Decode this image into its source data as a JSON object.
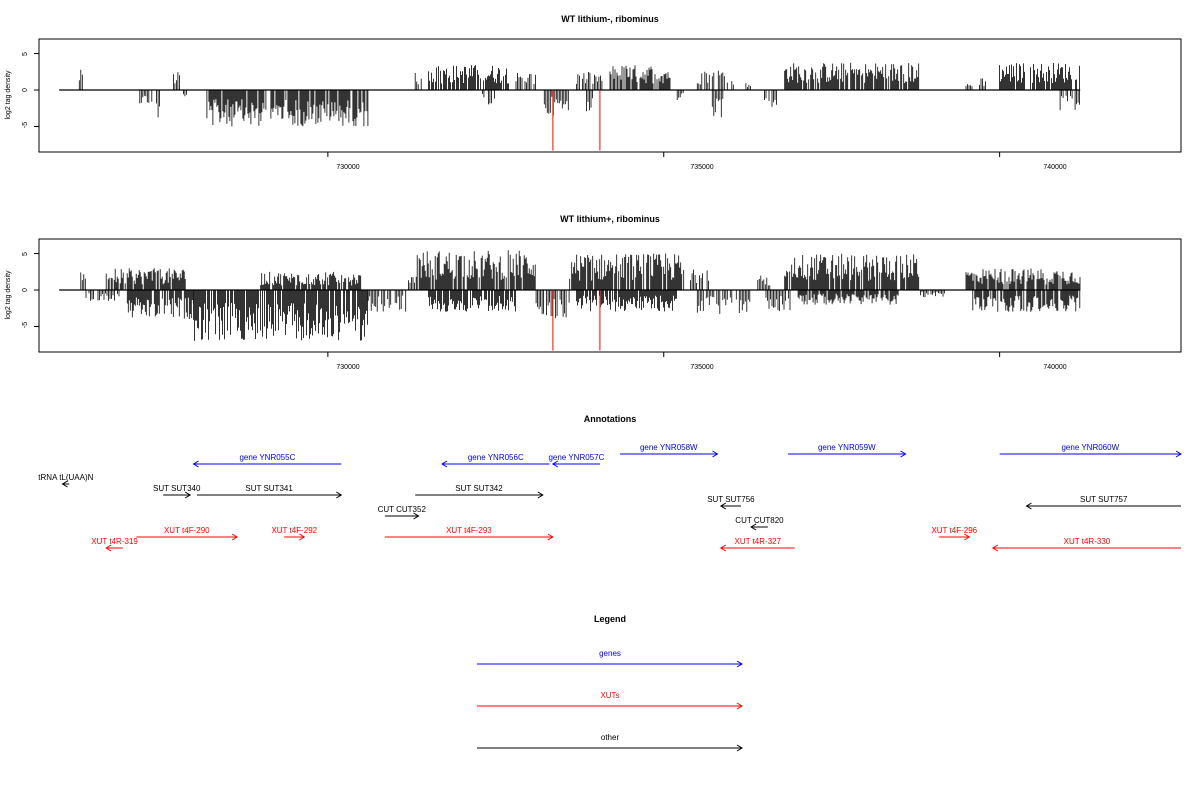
{
  "colors": {
    "gene": "#0000ff",
    "xut": "#ff0000",
    "other": "#000000",
    "marker": "#ff0000",
    "bar": "#000000"
  },
  "chart_data": [
    {
      "type": "bar",
      "title": "WT lithium-, ribominus",
      "ylabel": "log2 tag density",
      "xticks": [
        730000,
        735000,
        740000
      ],
      "xtick_labels": [
        "730000",
        "735000",
        "740000"
      ],
      "yticks": [
        -5,
        0,
        5
      ],
      "ytick_labels": [
        "-5",
        "0",
        "5"
      ],
      "xlim": [
        725700,
        742700
      ],
      "ylim": [
        -8.5,
        7
      ],
      "data_range": [
        726000,
        741200
      ],
      "red_markers": [
        733350,
        734050
      ],
      "blocks": [
        [
          726300,
          726350,
          1,
          2.8
        ],
        [
          727200,
          727400,
          -1,
          2
        ],
        [
          727450,
          727500,
          -1,
          4
        ],
        [
          727700,
          727800,
          1,
          2.5
        ],
        [
          727850,
          727900,
          -1,
          1
        ],
        [
          728200,
          730600,
          -1,
          5
        ],
        [
          731300,
          731400,
          1,
          2.8
        ],
        [
          731500,
          732700,
          1,
          3.5
        ],
        [
          732300,
          732500,
          -1,
          2
        ],
        [
          732800,
          733100,
          1,
          2.5
        ],
        [
          733200,
          733600,
          -1,
          3.5
        ],
        [
          733700,
          734100,
          1,
          2.5
        ],
        [
          733850,
          733950,
          -1,
          3
        ],
        [
          734200,
          735100,
          1,
          3.5
        ],
        [
          735200,
          735300,
          -1,
          1.5
        ],
        [
          735500,
          736100,
          1,
          3
        ],
        [
          735700,
          735900,
          -1,
          4
        ],
        [
          736200,
          736300,
          1,
          1
        ],
        [
          736500,
          736700,
          -1,
          2.5
        ],
        [
          736800,
          738800,
          1,
          3.8
        ],
        [
          739500,
          739600,
          1,
          1
        ],
        [
          739700,
          739800,
          1,
          2
        ],
        [
          740000,
          741200,
          1,
          3.8
        ],
        [
          740900,
          741200,
          -1,
          3
        ]
      ]
    },
    {
      "type": "bar",
      "title": "WT lithium+, ribominus",
      "ylabel": "log2 tag density",
      "xticks": [
        730000,
        735000,
        740000
      ],
      "xtick_labels": [
        "730000",
        "735000",
        "740000"
      ],
      "yticks": [
        -5,
        0,
        5
      ],
      "ytick_labels": [
        "-5",
        "0",
        "5"
      ],
      "xlim": [
        725700,
        742700
      ],
      "ylim": [
        -8.5,
        7
      ],
      "data_range": [
        726000,
        741200
      ],
      "red_markers": [
        733350,
        734050
      ],
      "blocks": [
        [
          726300,
          726400,
          1,
          4
        ],
        [
          726400,
          726900,
          -1,
          1.5
        ],
        [
          726700,
          727900,
          1,
          3
        ],
        [
          727000,
          728000,
          -1,
          4
        ],
        [
          728000,
          730600,
          -1,
          7
        ],
        [
          729000,
          730500,
          1,
          2.5
        ],
        [
          730600,
          731200,
          -1,
          3
        ],
        [
          731200,
          731300,
          1,
          2
        ],
        [
          731300,
          733100,
          1,
          5.5
        ],
        [
          731500,
          732800,
          -1,
          3
        ],
        [
          733100,
          733600,
          -1,
          4
        ],
        [
          733600,
          735300,
          1,
          5
        ],
        [
          733700,
          735200,
          -1,
          3
        ],
        [
          735400,
          735700,
          1,
          3
        ],
        [
          735500,
          736300,
          -1,
          3.5
        ],
        [
          736400,
          736600,
          1,
          2
        ],
        [
          736500,
          736900,
          -1,
          3
        ],
        [
          736800,
          738800,
          1,
          5
        ],
        [
          737000,
          738500,
          -1,
          2
        ],
        [
          738800,
          739200,
          -1,
          1
        ],
        [
          739500,
          741200,
          1,
          3
        ],
        [
          739600,
          741200,
          -1,
          3
        ]
      ]
    }
  ],
  "annotations": {
    "title": "Annotations",
    "features": [
      {
        "label": "gene YNR055C",
        "kind": "gene",
        "start": 728000,
        "end": 730200,
        "strand": "-",
        "row": 0
      },
      {
        "label": "gene YNR056C",
        "kind": "gene",
        "start": 731700,
        "end": 733300,
        "strand": "-",
        "row": 0
      },
      {
        "label": "gene YNR057C",
        "kind": "gene",
        "start": 733350,
        "end": 734050,
        "strand": "-",
        "row": 0
      },
      {
        "label": "gene YNR058W",
        "kind": "gene",
        "start": 734350,
        "end": 735800,
        "strand": "+",
        "row": -1
      },
      {
        "label": "gene YNR059W",
        "kind": "gene",
        "start": 736850,
        "end": 738600,
        "strand": "+",
        "row": -1
      },
      {
        "label": "gene YNR060W",
        "kind": "gene",
        "start": 740000,
        "end": 742700,
        "strand": "+",
        "row": -1
      },
      {
        "label": "tRNA tL(UAA)N",
        "kind": "other",
        "start": 726050,
        "end": 726150,
        "strand": "-",
        "row": 1
      },
      {
        "label": "SUT SUT340",
        "kind": "other",
        "start": 727550,
        "end": 727950,
        "strand": "+",
        "row": 2
      },
      {
        "label": "SUT SUT341",
        "kind": "other",
        "start": 728050,
        "end": 730200,
        "strand": "+",
        "row": 2
      },
      {
        "label": "SUT SUT342",
        "kind": "other",
        "start": 731300,
        "end": 733200,
        "strand": "+",
        "row": 2
      },
      {
        "label": "SUT SUT756",
        "kind": "other",
        "start": 735850,
        "end": 736150,
        "strand": "-",
        "row": 3
      },
      {
        "label": "SUT SUT757",
        "kind": "other",
        "start": 740400,
        "end": 742700,
        "strand": "-",
        "row": 3
      },
      {
        "label": "CUT CUT352",
        "kind": "other",
        "start": 730850,
        "end": 731350,
        "strand": "+",
        "row": 4
      },
      {
        "label": "CUT CUT820",
        "kind": "other",
        "start": 736300,
        "end": 736550,
        "strand": "-",
        "row": 5
      },
      {
        "label": "XUT t4F-290",
        "kind": "xut",
        "start": 727150,
        "end": 728650,
        "strand": "+",
        "row": 6
      },
      {
        "label": "XUT t4F-292",
        "kind": "xut",
        "start": 729350,
        "end": 729650,
        "strand": "+",
        "row": 6
      },
      {
        "label": "XUT t4F-293",
        "kind": "xut",
        "start": 730850,
        "end": 733350,
        "strand": "+",
        "row": 6
      },
      {
        "label": "XUT t4F-296",
        "kind": "xut",
        "start": 739100,
        "end": 739550,
        "strand": "+",
        "row": 6
      },
      {
        "label": "XUT t4R-319",
        "kind": "xut",
        "start": 726700,
        "end": 726950,
        "strand": "-",
        "row": 7
      },
      {
        "label": "XUT t4R-327",
        "kind": "xut",
        "start": 735850,
        "end": 736950,
        "strand": "-",
        "row": 7
      },
      {
        "label": "XUT t4R-330",
        "kind": "xut",
        "start": 739900,
        "end": 742700,
        "strand": "-",
        "row": 7
      }
    ]
  },
  "legend": {
    "title": "Legend",
    "items": [
      {
        "label": "genes",
        "kind": "gene"
      },
      {
        "label": "XUTs",
        "kind": "xut"
      },
      {
        "label": "other",
        "kind": "other"
      }
    ]
  }
}
